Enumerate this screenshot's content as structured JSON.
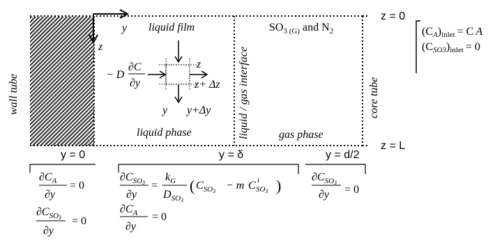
{
  "diagram": {
    "axis_z_top": "z = 0",
    "axis_z_bottom": "z = L",
    "inlet_ca": "(C",
    "inlet_ca_sub": "A",
    "inlet_ca_post": ")",
    "inlet_word": "inlet",
    "inlet_ca_rhs": "= C",
    "inlet_so3": "(C",
    "inlet_so3_sub": "SO3",
    "inlet_so3_rhs": "= 0",
    "wall_tube": "wall tube",
    "core_tube": "core tube",
    "liquid_film": "liquid film",
    "gas_title": "SO",
    "gas_title_sub": "3 (G)",
    "gas_title_rest": " and N",
    "gas_title_sub2": "2",
    "interface": "liquid / gas interface",
    "liquid_phase": "liquid phase",
    "gas_phase": "gas phase",
    "axis_y": "y",
    "axis_z": "z",
    "y0": "y = 0",
    "y_delta": "y = δ",
    "y_d2": "y = d/2",
    "flux_minus_d": "− D",
    "dz_z": "z",
    "dz_z_plus": "z+ Δz",
    "dy_y": "y",
    "dy_y_plus": "y+Δy",
    "eq_zero": "= 0",
    "eq_d": "∂",
    "num_c": "C",
    "sub_a": "A",
    "sub_so3": "SO",
    "den_dy": "∂y",
    "kg": "k",
    "kg_sub": "G",
    "dso3": "D",
    "paren_open": "(",
    "paren_close": ")",
    "minus_m": "− m",
    "sup_i": "i",
    "eq": "="
  }
}
